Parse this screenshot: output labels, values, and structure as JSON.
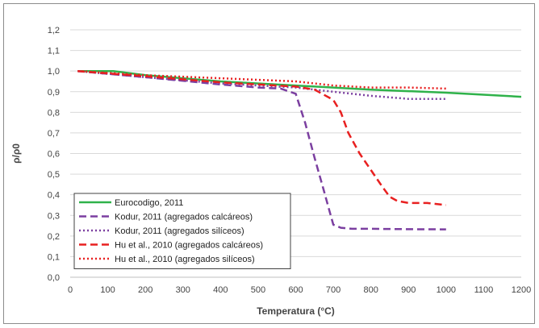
{
  "chart_data": {
    "type": "line",
    "xlabel": "Temperatura (°C)",
    "ylabel": "ρ/ρ0",
    "xlim": [
      0,
      1200
    ],
    "ylim": [
      0,
      1.2
    ],
    "xticks": [
      "0",
      "100",
      "200",
      "300",
      "400",
      "500",
      "600",
      "700",
      "800",
      "900",
      "1000",
      "1100",
      "1200"
    ],
    "yticks": [
      "0,0",
      "0,1",
      "0,2",
      "0,3",
      "0,4",
      "0,5",
      "0,6",
      "0,7",
      "0,8",
      "0,9",
      "1,0",
      "1,1",
      "1,2"
    ],
    "grid": "horizontal",
    "legend_position": "bottom-left",
    "series": [
      {
        "name": "Eurocodigo, 2011",
        "color": "#2fb24a",
        "style": "solid",
        "x": [
          20,
          115,
          200,
          400,
          600,
          800,
          1000,
          1200
        ],
        "y": [
          1.0,
          1.0,
          0.98,
          0.95,
          0.93,
          0.91,
          0.895,
          0.875
        ]
      },
      {
        "name": "Kodur, 2011 (agregados calcáreos)",
        "color": "#7b3fa0",
        "style": "dashed",
        "x": [
          20,
          200,
          400,
          500,
          560,
          600,
          625,
          650,
          675,
          690,
          700,
          720,
          750,
          800,
          900,
          1000
        ],
        "y": [
          1.0,
          0.97,
          0.935,
          0.92,
          0.915,
          0.89,
          0.75,
          0.58,
          0.42,
          0.32,
          0.255,
          0.24,
          0.235,
          0.235,
          0.233,
          0.232
        ]
      },
      {
        "name": "Kodur, 2011 (agregados silíceos)",
        "color": "#7b3fa0",
        "style": "dotted",
        "x": [
          20,
          200,
          400,
          500,
          600,
          700,
          800,
          900,
          1000
        ],
        "y": [
          1.0,
          0.97,
          0.94,
          0.93,
          0.92,
          0.9,
          0.88,
          0.865,
          0.865
        ]
      },
      {
        "name": "Hu et al., 2010 (agregados calcáreos)",
        "color": "#e82020",
        "style": "dashed",
        "x": [
          20,
          200,
          400,
          600,
          650,
          700,
          720,
          740,
          770,
          800,
          830,
          850,
          870,
          900,
          950,
          1000
        ],
        "y": [
          1.0,
          0.975,
          0.945,
          0.925,
          0.91,
          0.86,
          0.8,
          0.7,
          0.6,
          0.52,
          0.44,
          0.39,
          0.37,
          0.36,
          0.36,
          0.35
        ]
      },
      {
        "name": "Hu et al., 2010 (agregados silíceos)",
        "color": "#e82020",
        "style": "dotted",
        "x": [
          20,
          200,
          400,
          600,
          700,
          800,
          900,
          1000
        ],
        "y": [
          1.0,
          0.98,
          0.965,
          0.95,
          0.93,
          0.92,
          0.92,
          0.915
        ]
      }
    ]
  }
}
